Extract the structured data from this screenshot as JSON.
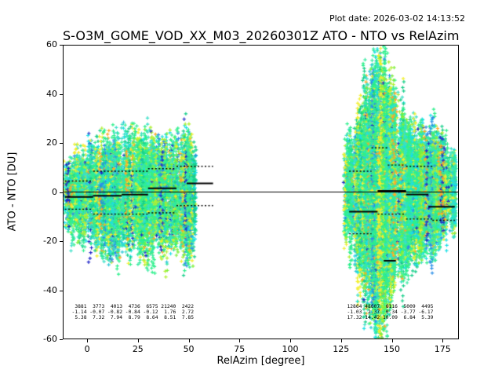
{
  "chart_data": {
    "type": "scatter",
    "title": "S-O3M_GOME_VOD_XX_M03_20260301Z ATO - NTO vs RelAzim",
    "plot_date": "Plot date: 2026-03-02 14:13:52",
    "xlabel": "RelAzim [degree]",
    "ylabel": "ATO - NTO [DU]",
    "xlim": [
      -12,
      183
    ],
    "ylim": [
      -60,
      60
    ],
    "xticks": [
      0,
      25,
      50,
      75,
      100,
      125,
      150,
      175
    ],
    "yticks": [
      -60,
      -40,
      -20,
      0,
      20,
      40,
      60
    ],
    "marker": "+",
    "grid": false,
    "zero_line_y": 0,
    "palette": [
      {
        "color": "#2df08c",
        "w": 26
      },
      {
        "color": "#35eaa0",
        "w": 14
      },
      {
        "color": "#17cf8a",
        "w": 8
      },
      {
        "color": "#3ae0c8",
        "w": 12
      },
      {
        "color": "#19e0e6",
        "w": 10
      },
      {
        "color": "#2cc8d8",
        "w": 5
      },
      {
        "color": "#f2ef2c",
        "w": 9
      },
      {
        "color": "#b0f032",
        "w": 8
      },
      {
        "color": "#7df03a",
        "w": 5
      },
      {
        "color": "#ffa726",
        "w": 5
      },
      {
        "color": "#2026c8",
        "w": 3
      },
      {
        "color": "#2a8fe8",
        "w": 4
      }
    ],
    "clusters": [
      {
        "seed": 7,
        "x_min": -11,
        "x_max": 53,
        "columns": 420,
        "center": -1,
        "center_spread": 6,
        "envelope": [
          [
            -11,
            14
          ],
          [
            -5,
            18
          ],
          [
            0,
            20
          ],
          [
            8,
            24
          ],
          [
            15,
            26
          ],
          [
            22,
            26
          ],
          [
            28,
            27
          ],
          [
            35,
            26
          ],
          [
            40,
            22
          ],
          [
            45,
            26
          ],
          [
            50,
            30
          ],
          [
            53,
            26
          ]
        ]
      },
      {
        "seed": 42,
        "x_min": 127,
        "x_max": 181,
        "columns": 440,
        "center": 0,
        "center_spread": 6,
        "envelope": [
          [
            127,
            22
          ],
          [
            132,
            28
          ],
          [
            136,
            45
          ],
          [
            140,
            58
          ],
          [
            145,
            60
          ],
          [
            150,
            50
          ],
          [
            155,
            38
          ],
          [
            160,
            33
          ],
          [
            166,
            28
          ],
          [
            172,
            24
          ],
          [
            178,
            20
          ],
          [
            181,
            16
          ]
        ]
      }
    ],
    "median_segments": [
      {
        "x1": -11,
        "x2": 3,
        "y": -2
      },
      {
        "x1": 3,
        "x2": 17,
        "y": -1.5
      },
      {
        "x1": 17,
        "x2": 30,
        "y": -1
      },
      {
        "x1": 30,
        "x2": 44,
        "y": 1.5
      },
      {
        "x1": 49,
        "x2": 62,
        "y": 3.5
      },
      {
        "x1": 129,
        "x2": 143,
        "y": -8
      },
      {
        "x1": 143,
        "x2": 157,
        "y": 0.5
      },
      {
        "x1": 146,
        "x2": 152,
        "y": -28
      },
      {
        "x1": 157,
        "x2": 168,
        "y": -1
      },
      {
        "x1": 168,
        "x2": 181,
        "y": -6
      }
    ],
    "percentile_segments": [
      {
        "x1": -11,
        "x2": 3,
        "y": 4.5
      },
      {
        "x1": -11,
        "x2": 3,
        "y": -7
      },
      {
        "x1": 3,
        "x2": 30,
        "y": 8.5
      },
      {
        "x1": 3,
        "x2": 30,
        "y": -9
      },
      {
        "x1": 30,
        "x2": 44,
        "y": 9.5
      },
      {
        "x1": 30,
        "x2": 44,
        "y": -8.5
      },
      {
        "x1": 44,
        "x2": 62,
        "y": 10.5
      },
      {
        "x1": 44,
        "x2": 62,
        "y": -5.5
      },
      {
        "x1": 129,
        "x2": 140,
        "y": 8.5
      },
      {
        "x1": 129,
        "x2": 140,
        "y": -17
      },
      {
        "x1": 140,
        "x2": 148,
        "y": 18
      },
      {
        "x1": 148,
        "x2": 157,
        "y": 11
      },
      {
        "x1": 157,
        "x2": 170,
        "y": 10.5
      },
      {
        "x1": 143,
        "x2": 157,
        "y": -9
      },
      {
        "x1": 157,
        "x2": 170,
        "y": -11
      },
      {
        "x1": 170,
        "x2": 181,
        "y": -11.5
      }
    ],
    "stats_blocks": [
      {
        "x": -9,
        "y": -45.5,
        "rows": [
          [
            "3881",
            "3773",
            "4013",
            "4736",
            "6575",
            "21240",
            "2422"
          ],
          [
            "-1.14",
            "-0.07",
            "-0.82",
            "-0.84",
            "-0.12",
            "1.76",
            "2.72"
          ],
          [
            "5.38",
            "7.32",
            "7.94",
            "8.79",
            "8.64",
            "8.51",
            "7.85"
          ]
        ]
      },
      {
        "x": 126.5,
        "y": -45.5,
        "rows": [
          [
            "12864",
            "48607",
            "6116",
            "5009",
            "4495"
          ],
          [
            "-1.03",
            "2.37",
            "0.34",
            "-3.77",
            "-6.17"
          ],
          [
            "17.32",
            "14.42",
            "10.09",
            "6.84",
            "5.39"
          ]
        ]
      }
    ]
  }
}
